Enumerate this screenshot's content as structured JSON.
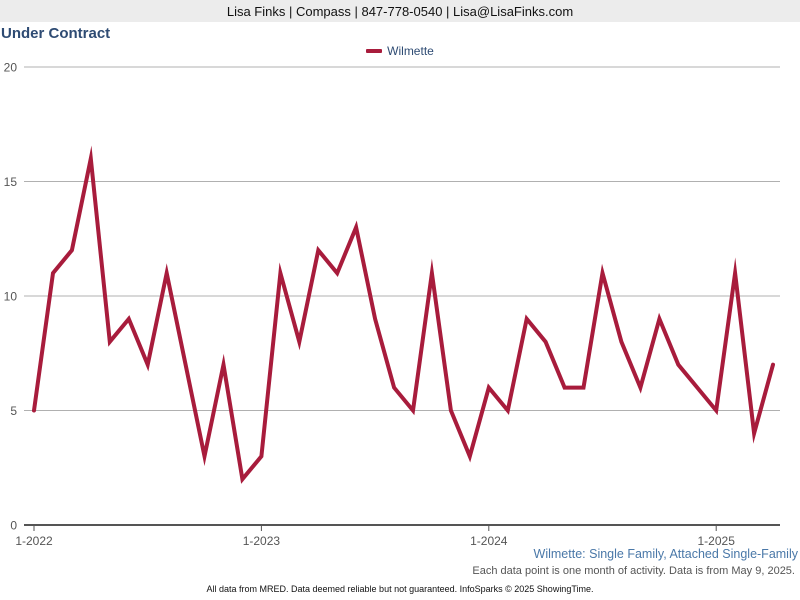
{
  "header": {
    "contact": "Lisa Finks | Compass | 847-778-0540 | Lisa@LisaFinks.com"
  },
  "colors": {
    "series": "#a81c3c",
    "title": "#2e4b73",
    "subtitle": "#4a78a8",
    "grid": "#b0b0b0"
  },
  "chart_data": {
    "type": "line",
    "title": "Under Contract",
    "legend_position": "top-center",
    "grid": true,
    "xlabel": "",
    "ylabel": "",
    "ylim": [
      0,
      20
    ],
    "y_ticks": [
      0,
      5,
      10,
      15,
      20
    ],
    "x_ticks": [
      "1-2022",
      "1-2023",
      "1-2024",
      "1-2025"
    ],
    "series": [
      {
        "name": "Wilmette",
        "x": [
          "2022-01",
          "2022-02",
          "2022-03",
          "2022-04",
          "2022-05",
          "2022-06",
          "2022-07",
          "2022-08",
          "2022-09",
          "2022-10",
          "2022-11",
          "2022-12",
          "2023-01",
          "2023-02",
          "2023-03",
          "2023-04",
          "2023-05",
          "2023-06",
          "2023-07",
          "2023-08",
          "2023-09",
          "2023-10",
          "2023-11",
          "2023-12",
          "2024-01",
          "2024-02",
          "2024-03",
          "2024-04",
          "2024-05",
          "2024-06",
          "2024-07",
          "2024-08",
          "2024-09",
          "2024-10",
          "2024-11",
          "2024-12",
          "2025-01",
          "2025-02",
          "2025-03",
          "2025-04"
        ],
        "values": [
          5,
          11,
          12,
          16,
          8,
          9,
          7,
          11,
          7,
          3,
          7,
          2,
          3,
          11,
          8,
          12,
          11,
          13,
          9,
          6,
          5,
          11,
          5,
          3,
          6,
          5,
          9,
          8,
          6,
          6,
          11,
          8,
          6,
          9,
          7,
          6,
          5,
          11,
          4,
          7
        ]
      }
    ]
  },
  "captions": {
    "subtitle": "Wilmette: Single Family, Attached Single-Family",
    "note": "Each data point is one month of activity. Data is from May 9, 2025.",
    "footer": "All data from MRED. Data deemed reliable but not guaranteed. InfoSparks © 2025 ShowingTime."
  }
}
